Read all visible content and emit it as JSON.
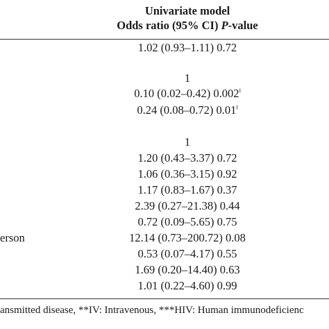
{
  "header": {
    "line1": "Univariate model",
    "line2_prefix": "Odds ratio (95% CI) ",
    "line2_pvalue": "P",
    "line2_suffix": "-value"
  },
  "rows": [
    {
      "label": "",
      "value": "1.02 (0.93–1.11) 0.72",
      "mark": ""
    },
    {
      "label": "",
      "value": "1",
      "mark": ""
    },
    {
      "label": "",
      "value": "0.10 (0.02–0.42) 0.002",
      "mark": "‖"
    },
    {
      "label": "",
      "value": "0.24 (0.08–0.72) 0.01",
      "mark": "‖"
    },
    {
      "label": "",
      "value": "1",
      "mark": ""
    },
    {
      "label": "",
      "value": "1.20 (0.43–3.37) 0.72",
      "mark": ""
    },
    {
      "label": "",
      "value": "1.06 (0.36–3.15) 0.92",
      "mark": ""
    },
    {
      "label": "",
      "value": "1.17 (0.83–1.67) 0.37",
      "mark": ""
    },
    {
      "label": "",
      "value": "2.39 (0.27–21.38) 0.44",
      "mark": ""
    },
    {
      "label": "",
      "value": "0.72 (0.09–5.65) 0.75",
      "mark": ""
    },
    {
      "label": "erson",
      "value": "12.14 (0.73–200.72) 0.08",
      "mark": ""
    },
    {
      "label": "",
      "value": "0.53 (0.07–4.17) 0.55",
      "mark": ""
    },
    {
      "label": "",
      "value": "1.69 (0.20–14.40) 0.63",
      "mark": ""
    },
    {
      "label": "",
      "value": "1.01 (0.22–4.60) 0.99",
      "mark": ""
    }
  ],
  "footnote": "ansmitted disease, **IV: Intravenous, ***HIV: Human immunodeficienc"
}
